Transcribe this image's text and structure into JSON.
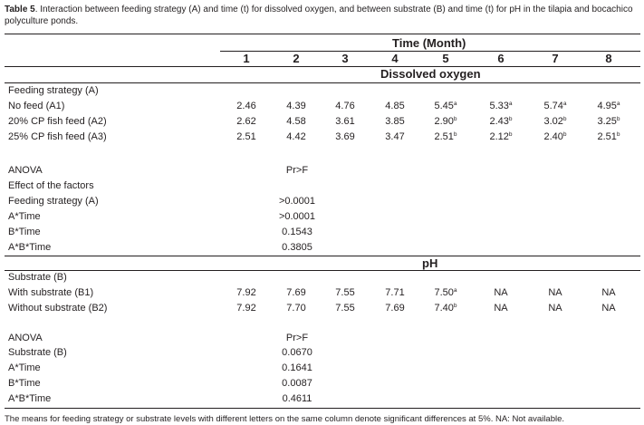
{
  "caption": {
    "label": "Table 5",
    "text": ". Interaction between feeding strategy (A) and time (t) for dissolved oxygen, and between substrate (B) and time (t) for pH in the tilapia and bocachico polyculture ponds."
  },
  "header": {
    "group": "Time (Month)",
    "months": [
      "1",
      "2",
      "3",
      "4",
      "5",
      "6",
      "7",
      "8"
    ],
    "section_do": "Dissolved oxygen",
    "section_ph": "pH"
  },
  "do": {
    "title": "Feeding strategy (A)",
    "rows": [
      {
        "label": "No feed (A1)",
        "values": [
          "2.46",
          "4.39",
          "4.76",
          "4.85",
          "5.45",
          "5.33",
          "5.74",
          "4.95"
        ],
        "sups": [
          "",
          "",
          "",
          "",
          "a",
          "a",
          "a",
          "a"
        ]
      },
      {
        "label": "20% CP fish feed (A2)",
        "values": [
          "2.62",
          "4.58",
          "3.61",
          "3.85",
          "2.90",
          "2.43",
          "3.02",
          "3.25"
        ],
        "sups": [
          "",
          "",
          "",
          "",
          "b",
          "b",
          "b",
          "b"
        ]
      },
      {
        "label": "25% CP fish feed (A3)",
        "values": [
          "2.51",
          "4.42",
          "3.69",
          "3.47",
          "2.51",
          "2.12",
          "2.40",
          "2.51"
        ],
        "sups": [
          "",
          "",
          "",
          "",
          "b",
          "b",
          "b",
          "b"
        ]
      }
    ],
    "anova": {
      "title": "ANOVA",
      "pr_header": "Pr>F",
      "subtitle": "Effect of the factors",
      "rows": [
        {
          "label": "Feeding strategy (A)",
          "value": ">0.0001"
        },
        {
          "label": "A*Time",
          "value": ">0.0001"
        },
        {
          "label": "B*Time",
          "value": "0.1543"
        },
        {
          "label": "A*B*Time",
          "value": "0.3805"
        }
      ]
    }
  },
  "ph": {
    "title": "Substrate (B)",
    "rows": [
      {
        "label": "With substrate (B1)",
        "values": [
          "7.92",
          "7.69",
          "7.55",
          "7.71",
          "7.50",
          "NA",
          "NA",
          "NA"
        ],
        "sups": [
          "",
          "",
          "",
          "",
          "a",
          "",
          "",
          ""
        ]
      },
      {
        "label": " Without substrate (B2)",
        "values": [
          "7.92",
          "7.70",
          "7.55",
          "7.69",
          "7.40",
          "NA",
          "NA",
          "NA"
        ],
        "sups": [
          "",
          "",
          "",
          "",
          "b",
          "",
          "",
          ""
        ]
      }
    ],
    "anova": {
      "title": "ANOVA",
      "pr_header": "Pr>F",
      "rows": [
        {
          "label": "Substrate (B)",
          "value": "0.0670"
        },
        {
          "label": "A*Time",
          "value": "0.1641"
        },
        {
          "label": "B*Time",
          "value": "0.0087"
        },
        {
          "label": "A*B*Time",
          "value": "0.4611"
        }
      ]
    }
  },
  "footnote": "The means for feeding strategy or substrate levels with different letters on the same column denote significant differences at 5%. NA: Not available."
}
